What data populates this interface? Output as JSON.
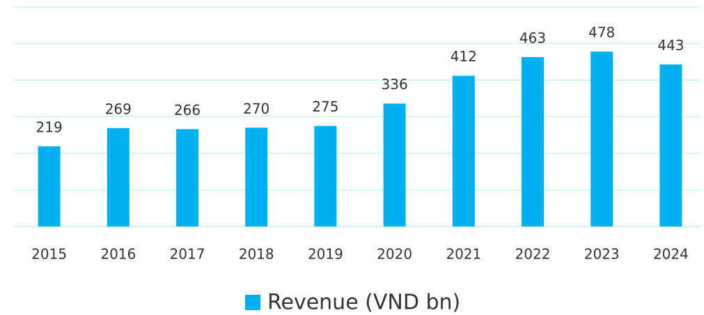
{
  "chart_data": {
    "type": "bar",
    "categories": [
      "2015",
      "2016",
      "2017",
      "2018",
      "2019",
      "2020",
      "2021",
      "2022",
      "2023",
      "2024"
    ],
    "series": [
      {
        "name": "Revenue (VND bn)",
        "color": "#00b0f0",
        "values": [
          219,
          269,
          266,
          270,
          275,
          336,
          412,
          463,
          478,
          443
        ]
      }
    ],
    "ylim": [
      0,
      600
    ],
    "yticks": [
      0,
      100,
      200,
      300,
      400,
      500,
      600
    ],
    "grid": true,
    "legend": "bottom"
  }
}
